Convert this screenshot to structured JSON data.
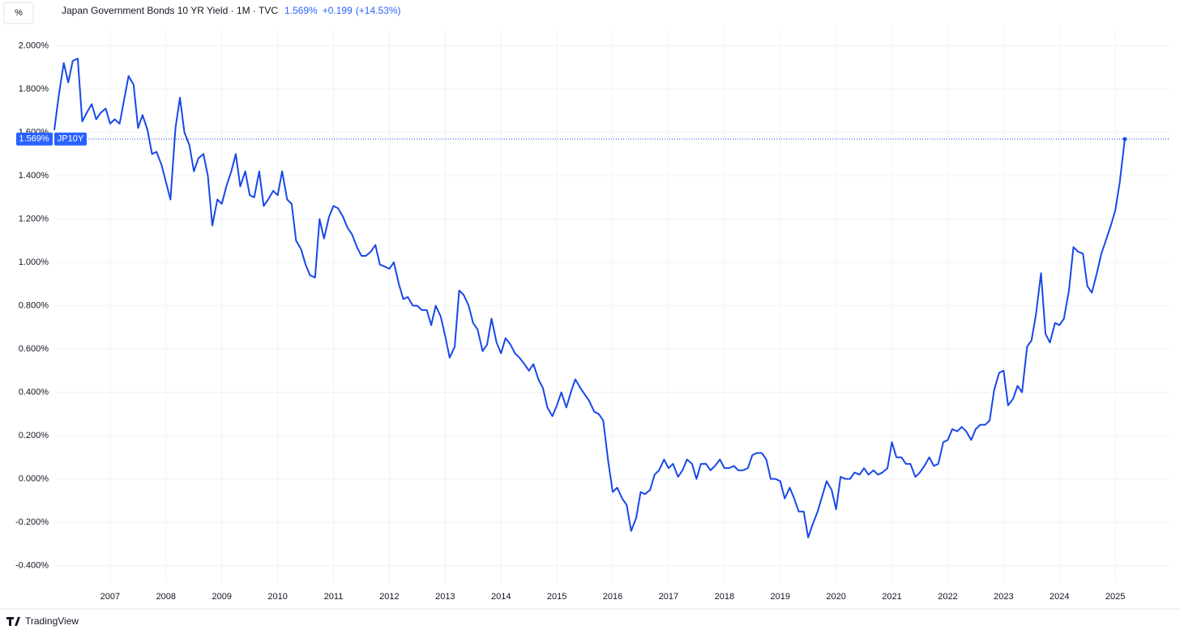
{
  "chart_data": {
    "type": "line",
    "unit_button": "%",
    "title": "Japan Government Bonds 10 YR Yield · 1M · TVC",
    "header": {
      "last": "1.569%",
      "change": "+0.199",
      "change_pct": "(+14.53%)"
    },
    "brand": "TradingView",
    "grid": true,
    "xlim": [
      2006,
      2025.97
    ],
    "xticks": [
      2007,
      2008,
      2009,
      2010,
      2011,
      2012,
      2013,
      2014,
      2015,
      2016,
      2017,
      2018,
      2019,
      2020,
      2021,
      2022,
      2023,
      2024,
      2025
    ],
    "ylim": [
      -0.48,
      2.08
    ],
    "yticks": [
      {
        "value": -0.4,
        "label": "-0.400%"
      },
      {
        "value": -0.2,
        "label": "-0.200%"
      },
      {
        "value": 0,
        "label": "0.000%"
      },
      {
        "value": 0.2,
        "label": "0.200%"
      },
      {
        "value": 0.4,
        "label": "0.400%"
      },
      {
        "value": 0.6,
        "label": "0.600%"
      },
      {
        "value": 0.8,
        "label": "0.800%"
      },
      {
        "value": 1.0,
        "label": "1.000%"
      },
      {
        "value": 1.2,
        "label": "1.200%"
      },
      {
        "value": 1.4,
        "label": "1.400%"
      },
      {
        "value": 1.6,
        "label": "1.600%"
      },
      {
        "value": 1.8,
        "label": "1.800%"
      },
      {
        "value": 2.0,
        "label": "2.000%"
      }
    ],
    "x": [
      2006,
      2006.08,
      2006.17,
      2006.25,
      2006.33,
      2006.42,
      2006.5,
      2006.58,
      2006.67,
      2006.75,
      2006.83,
      2006.92,
      2007,
      2007.08,
      2007.17,
      2007.25,
      2007.33,
      2007.42,
      2007.5,
      2007.58,
      2007.67,
      2007.75,
      2007.83,
      2007.92,
      2008,
      2008.08,
      2008.17,
      2008.25,
      2008.33,
      2008.42,
      2008.5,
      2008.58,
      2008.67,
      2008.75,
      2008.83,
      2008.92,
      2009,
      2009.08,
      2009.17,
      2009.25,
      2009.33,
      2009.42,
      2009.5,
      2009.58,
      2009.67,
      2009.75,
      2009.83,
      2009.92,
      2010,
      2010.08,
      2010.17,
      2010.25,
      2010.33,
      2010.42,
      2010.5,
      2010.58,
      2010.67,
      2010.75,
      2010.83,
      2010.92,
      2011,
      2011.08,
      2011.17,
      2011.25,
      2011.33,
      2011.42,
      2011.5,
      2011.58,
      2011.67,
      2011.75,
      2011.83,
      2011.92,
      2012,
      2012.08,
      2012.17,
      2012.25,
      2012.33,
      2012.42,
      2012.5,
      2012.58,
      2012.67,
      2012.75,
      2012.83,
      2012.92,
      2013,
      2013.08,
      2013.17,
      2013.25,
      2013.33,
      2013.42,
      2013.5,
      2013.58,
      2013.67,
      2013.75,
      2013.83,
      2013.92,
      2014,
      2014.08,
      2014.17,
      2014.25,
      2014.33,
      2014.42,
      2014.5,
      2014.58,
      2014.67,
      2014.75,
      2014.83,
      2014.92,
      2015,
      2015.08,
      2015.17,
      2015.25,
      2015.33,
      2015.42,
      2015.5,
      2015.58,
      2015.67,
      2015.75,
      2015.83,
      2015.92,
      2016,
      2016.08,
      2016.17,
      2016.25,
      2016.33,
      2016.42,
      2016.5,
      2016.58,
      2016.67,
      2016.75,
      2016.83,
      2016.92,
      2017,
      2017.08,
      2017.17,
      2017.25,
      2017.33,
      2017.42,
      2017.5,
      2017.58,
      2017.67,
      2017.75,
      2017.83,
      2017.92,
      2018,
      2018.08,
      2018.17,
      2018.25,
      2018.33,
      2018.42,
      2018.5,
      2018.58,
      2018.67,
      2018.75,
      2018.83,
      2018.92,
      2019,
      2019.08,
      2019.17,
      2019.25,
      2019.33,
      2019.42,
      2019.5,
      2019.58,
      2019.67,
      2019.75,
      2019.83,
      2019.92,
      2020,
      2020.08,
      2020.17,
      2020.25,
      2020.33,
      2020.42,
      2020.5,
      2020.58,
      2020.67,
      2020.75,
      2020.83,
      2020.92,
      2021,
      2021.08,
      2021.17,
      2021.25,
      2021.33,
      2021.42,
      2021.5,
      2021.58,
      2021.67,
      2021.75,
      2021.83,
      2021.92,
      2022,
      2022.08,
      2022.17,
      2022.25,
      2022.33,
      2022.42,
      2022.5,
      2022.58,
      2022.67,
      2022.75,
      2022.83,
      2022.92,
      2023,
      2023.08,
      2023.17,
      2023.25,
      2023.33,
      2023.42,
      2023.5,
      2023.58,
      2023.67,
      2023.75,
      2023.83,
      2023.92,
      2024,
      2024.08,
      2024.17,
      2024.25,
      2024.33,
      2024.42,
      2024.5,
      2024.58,
      2024.67,
      2024.75,
      2024.83,
      2024.92,
      2025,
      2025.08,
      2025.17
    ],
    "series": [
      {
        "name": "JP10Y",
        "color": "#1848e8",
        "values": [
          1.61,
          1.77,
          1.92,
          1.83,
          1.93,
          1.94,
          1.65,
          1.69,
          1.73,
          1.66,
          1.69,
          1.71,
          1.64,
          1.66,
          1.64,
          1.75,
          1.86,
          1.82,
          1.62,
          1.68,
          1.61,
          1.5,
          1.51,
          1.45,
          1.37,
          1.29,
          1.62,
          1.76,
          1.6,
          1.54,
          1.42,
          1.48,
          1.5,
          1.4,
          1.17,
          1.29,
          1.27,
          1.35,
          1.42,
          1.5,
          1.35,
          1.42,
          1.31,
          1.3,
          1.42,
          1.26,
          1.29,
          1.33,
          1.31,
          1.42,
          1.29,
          1.27,
          1.1,
          1.06,
          0.99,
          0.94,
          0.93,
          1.2,
          1.11,
          1.21,
          1.26,
          1.25,
          1.21,
          1.16,
          1.13,
          1.07,
          1.03,
          1.03,
          1.05,
          1.08,
          0.99,
          0.98,
          0.97,
          1.0,
          0.9,
          0.83,
          0.84,
          0.8,
          0.8,
          0.78,
          0.78,
          0.71,
          0.8,
          0.75,
          0.66,
          0.56,
          0.61,
          0.87,
          0.85,
          0.8,
          0.72,
          0.69,
          0.59,
          0.62,
          0.74,
          0.63,
          0.58,
          0.65,
          0.62,
          0.58,
          0.56,
          0.53,
          0.5,
          0.53,
          0.46,
          0.42,
          0.33,
          0.29,
          0.34,
          0.4,
          0.33,
          0.4,
          0.46,
          0.42,
          0.39,
          0.36,
          0.31,
          0.3,
          0.27,
          0.08,
          -0.06,
          -0.04,
          -0.09,
          -0.12,
          -0.24,
          -0.18,
          -0.06,
          -0.07,
          -0.05,
          0.02,
          0.04,
          0.09,
          0.05,
          0.07,
          0.01,
          0.04,
          0.09,
          0.07,
          0.0,
          0.07,
          0.07,
          0.04,
          0.06,
          0.09,
          0.05,
          0.05,
          0.06,
          0.04,
          0.04,
          0.05,
          0.11,
          0.12,
          0.12,
          0.09,
          0.0,
          0.0,
          -0.01,
          -0.09,
          -0.04,
          -0.09,
          -0.15,
          -0.15,
          -0.27,
          -0.21,
          -0.15,
          -0.08,
          -0.01,
          -0.05,
          -0.14,
          0.01,
          0.0,
          0.0,
          0.03,
          0.02,
          0.05,
          0.02,
          0.04,
          0.02,
          0.03,
          0.05,
          0.17,
          0.1,
          0.1,
          0.07,
          0.07,
          0.01,
          0.03,
          0.06,
          0.1,
          0.06,
          0.07,
          0.17,
          0.18,
          0.23,
          0.22,
          0.24,
          0.22,
          0.18,
          0.23,
          0.25,
          0.25,
          0.27,
          0.41,
          0.49,
          0.5,
          0.34,
          0.37,
          0.43,
          0.4,
          0.61,
          0.64,
          0.76,
          0.95,
          0.67,
          0.63,
          0.72,
          0.71,
          0.74,
          0.87,
          1.07,
          1.05,
          1.04,
          0.89,
          0.86,
          0.95,
          1.04,
          1.1,
          1.17,
          1.24,
          1.37,
          1.569
        ]
      }
    ]
  }
}
